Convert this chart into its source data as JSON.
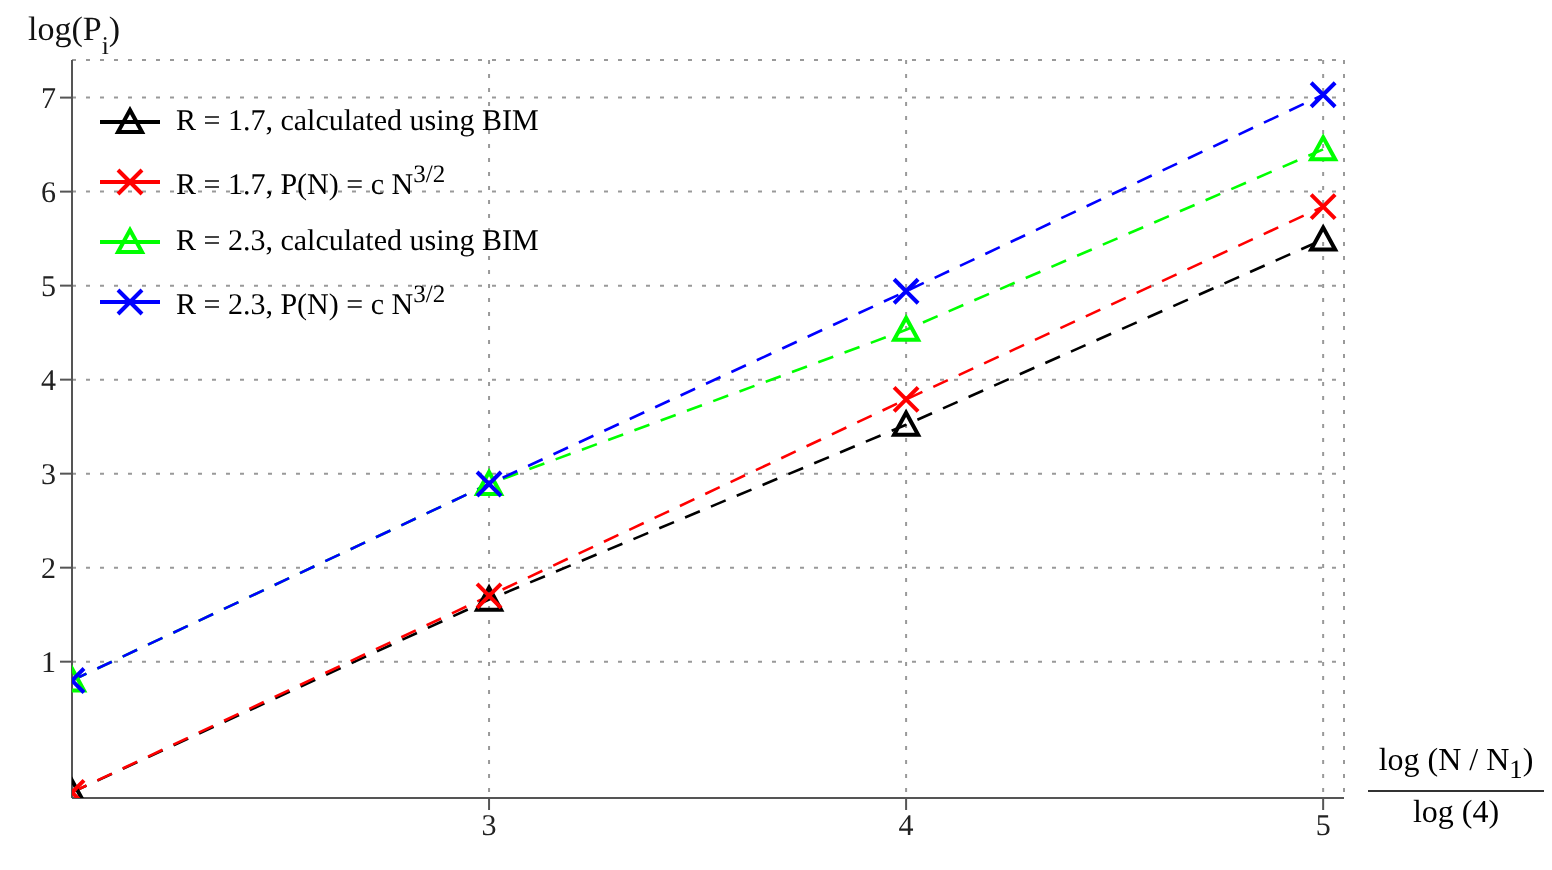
{
  "chart_data": {
    "type": "line",
    "ylabel": "log(P$_{i}$)",
    "xlabel": "log (N / N$_{1}$)\nlog (4)",
    "x": [
      2,
      3,
      4,
      5
    ],
    "series": [
      {
        "name": "R = 1.7, calculated using BIM",
        "color": "#000000",
        "marker": "triangle",
        "values": [
          -0.39,
          1.66,
          3.52,
          5.49
        ]
      },
      {
        "name": "R = 1.7, P(N) = c  N$^{3/2}$",
        "color": "#ff0000",
        "marker": "cross",
        "values": [
          -0.39,
          1.7,
          3.79,
          5.84
        ]
      },
      {
        "name": "R = 2.3, calculated using BIM",
        "color": "#00ff00",
        "marker": "triangle",
        "values": [
          0.8,
          2.89,
          4.53,
          6.45
        ]
      },
      {
        "name": "R = 2.3, P(N) = c  N$^{3/2}$",
        "color": "#0000ff",
        "marker": "cross",
        "values": [
          0.8,
          2.89,
          4.94,
          7.03
        ]
      }
    ],
    "xlim": [
      2,
      5.05
    ],
    "xticks": [
      3,
      4,
      5
    ],
    "ylim": [
      -0.45,
      7.4
    ],
    "yticks": [
      1,
      2,
      3,
      4,
      5,
      6,
      7
    ],
    "grid": true,
    "legend": "top left",
    "line_style": "dashed"
  }
}
